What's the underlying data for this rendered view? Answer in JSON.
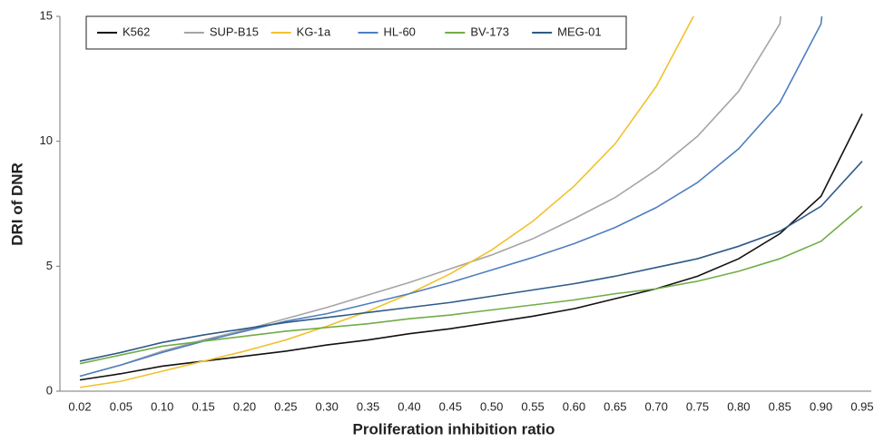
{
  "chart_data": {
    "type": "line",
    "x_label": "Proliferation inhibition ratio",
    "y_label": "DRI of DNR",
    "categories": [
      "0.02",
      "0.05",
      "0.10",
      "0.15",
      "0.20",
      "0.25",
      "0.30",
      "0.35",
      "0.40",
      "0.45",
      "0.50",
      "0.55",
      "0.60",
      "0.65",
      "0.70",
      "0.75",
      "0.80",
      "0.85",
      "0.90",
      "0.95"
    ],
    "ylim": [
      0,
      15
    ],
    "yticks": [
      0,
      5,
      10,
      15
    ],
    "grid": false,
    "legend": "top-left",
    "series": [
      {
        "name": "K562",
        "color": "#111111",
        "values": [
          0.45,
          0.7,
          1.0,
          1.2,
          1.4,
          1.6,
          1.85,
          2.05,
          2.3,
          2.5,
          2.75,
          3.0,
          3.3,
          3.7,
          4.1,
          4.6,
          5.3,
          6.3,
          7.8,
          11.1
        ]
      },
      {
        "name": "SUP-B15",
        "color": "#a5a5a5",
        "values": [
          0.6,
          1.05,
          1.6,
          2.05,
          2.45,
          2.9,
          3.35,
          3.85,
          4.35,
          4.9,
          5.45,
          6.1,
          6.9,
          7.75,
          8.85,
          10.2,
          12.0,
          14.7,
          30,
          null
        ]
      },
      {
        "name": "KG-1a",
        "color": "#f2c12e",
        "values": [
          0.15,
          0.4,
          0.8,
          1.2,
          1.6,
          2.05,
          2.6,
          3.2,
          3.9,
          4.7,
          5.65,
          6.8,
          8.2,
          9.9,
          12.2,
          15.3,
          null,
          null,
          null,
          null
        ]
      },
      {
        "name": "HL-60",
        "color": "#4f7fc0",
        "values": [
          0.6,
          1.05,
          1.55,
          2.0,
          2.4,
          2.8,
          3.1,
          3.5,
          3.9,
          4.35,
          4.85,
          5.35,
          5.9,
          6.55,
          7.35,
          8.35,
          9.7,
          11.55,
          14.7,
          30
        ]
      },
      {
        "name": "BV-173",
        "color": "#70ad47",
        "values": [
          1.1,
          1.45,
          1.8,
          2.0,
          2.2,
          2.4,
          2.55,
          2.7,
          2.9,
          3.05,
          3.25,
          3.45,
          3.65,
          3.9,
          4.1,
          4.4,
          4.8,
          5.3,
          6.0,
          7.4
        ]
      },
      {
        "name": "MEG-01",
        "color": "#2f5a87",
        "values": [
          1.2,
          1.55,
          1.95,
          2.25,
          2.5,
          2.75,
          2.95,
          3.15,
          3.35,
          3.55,
          3.8,
          4.05,
          4.3,
          4.6,
          4.95,
          5.3,
          5.8,
          6.4,
          7.4,
          9.2
        ]
      }
    ]
  }
}
